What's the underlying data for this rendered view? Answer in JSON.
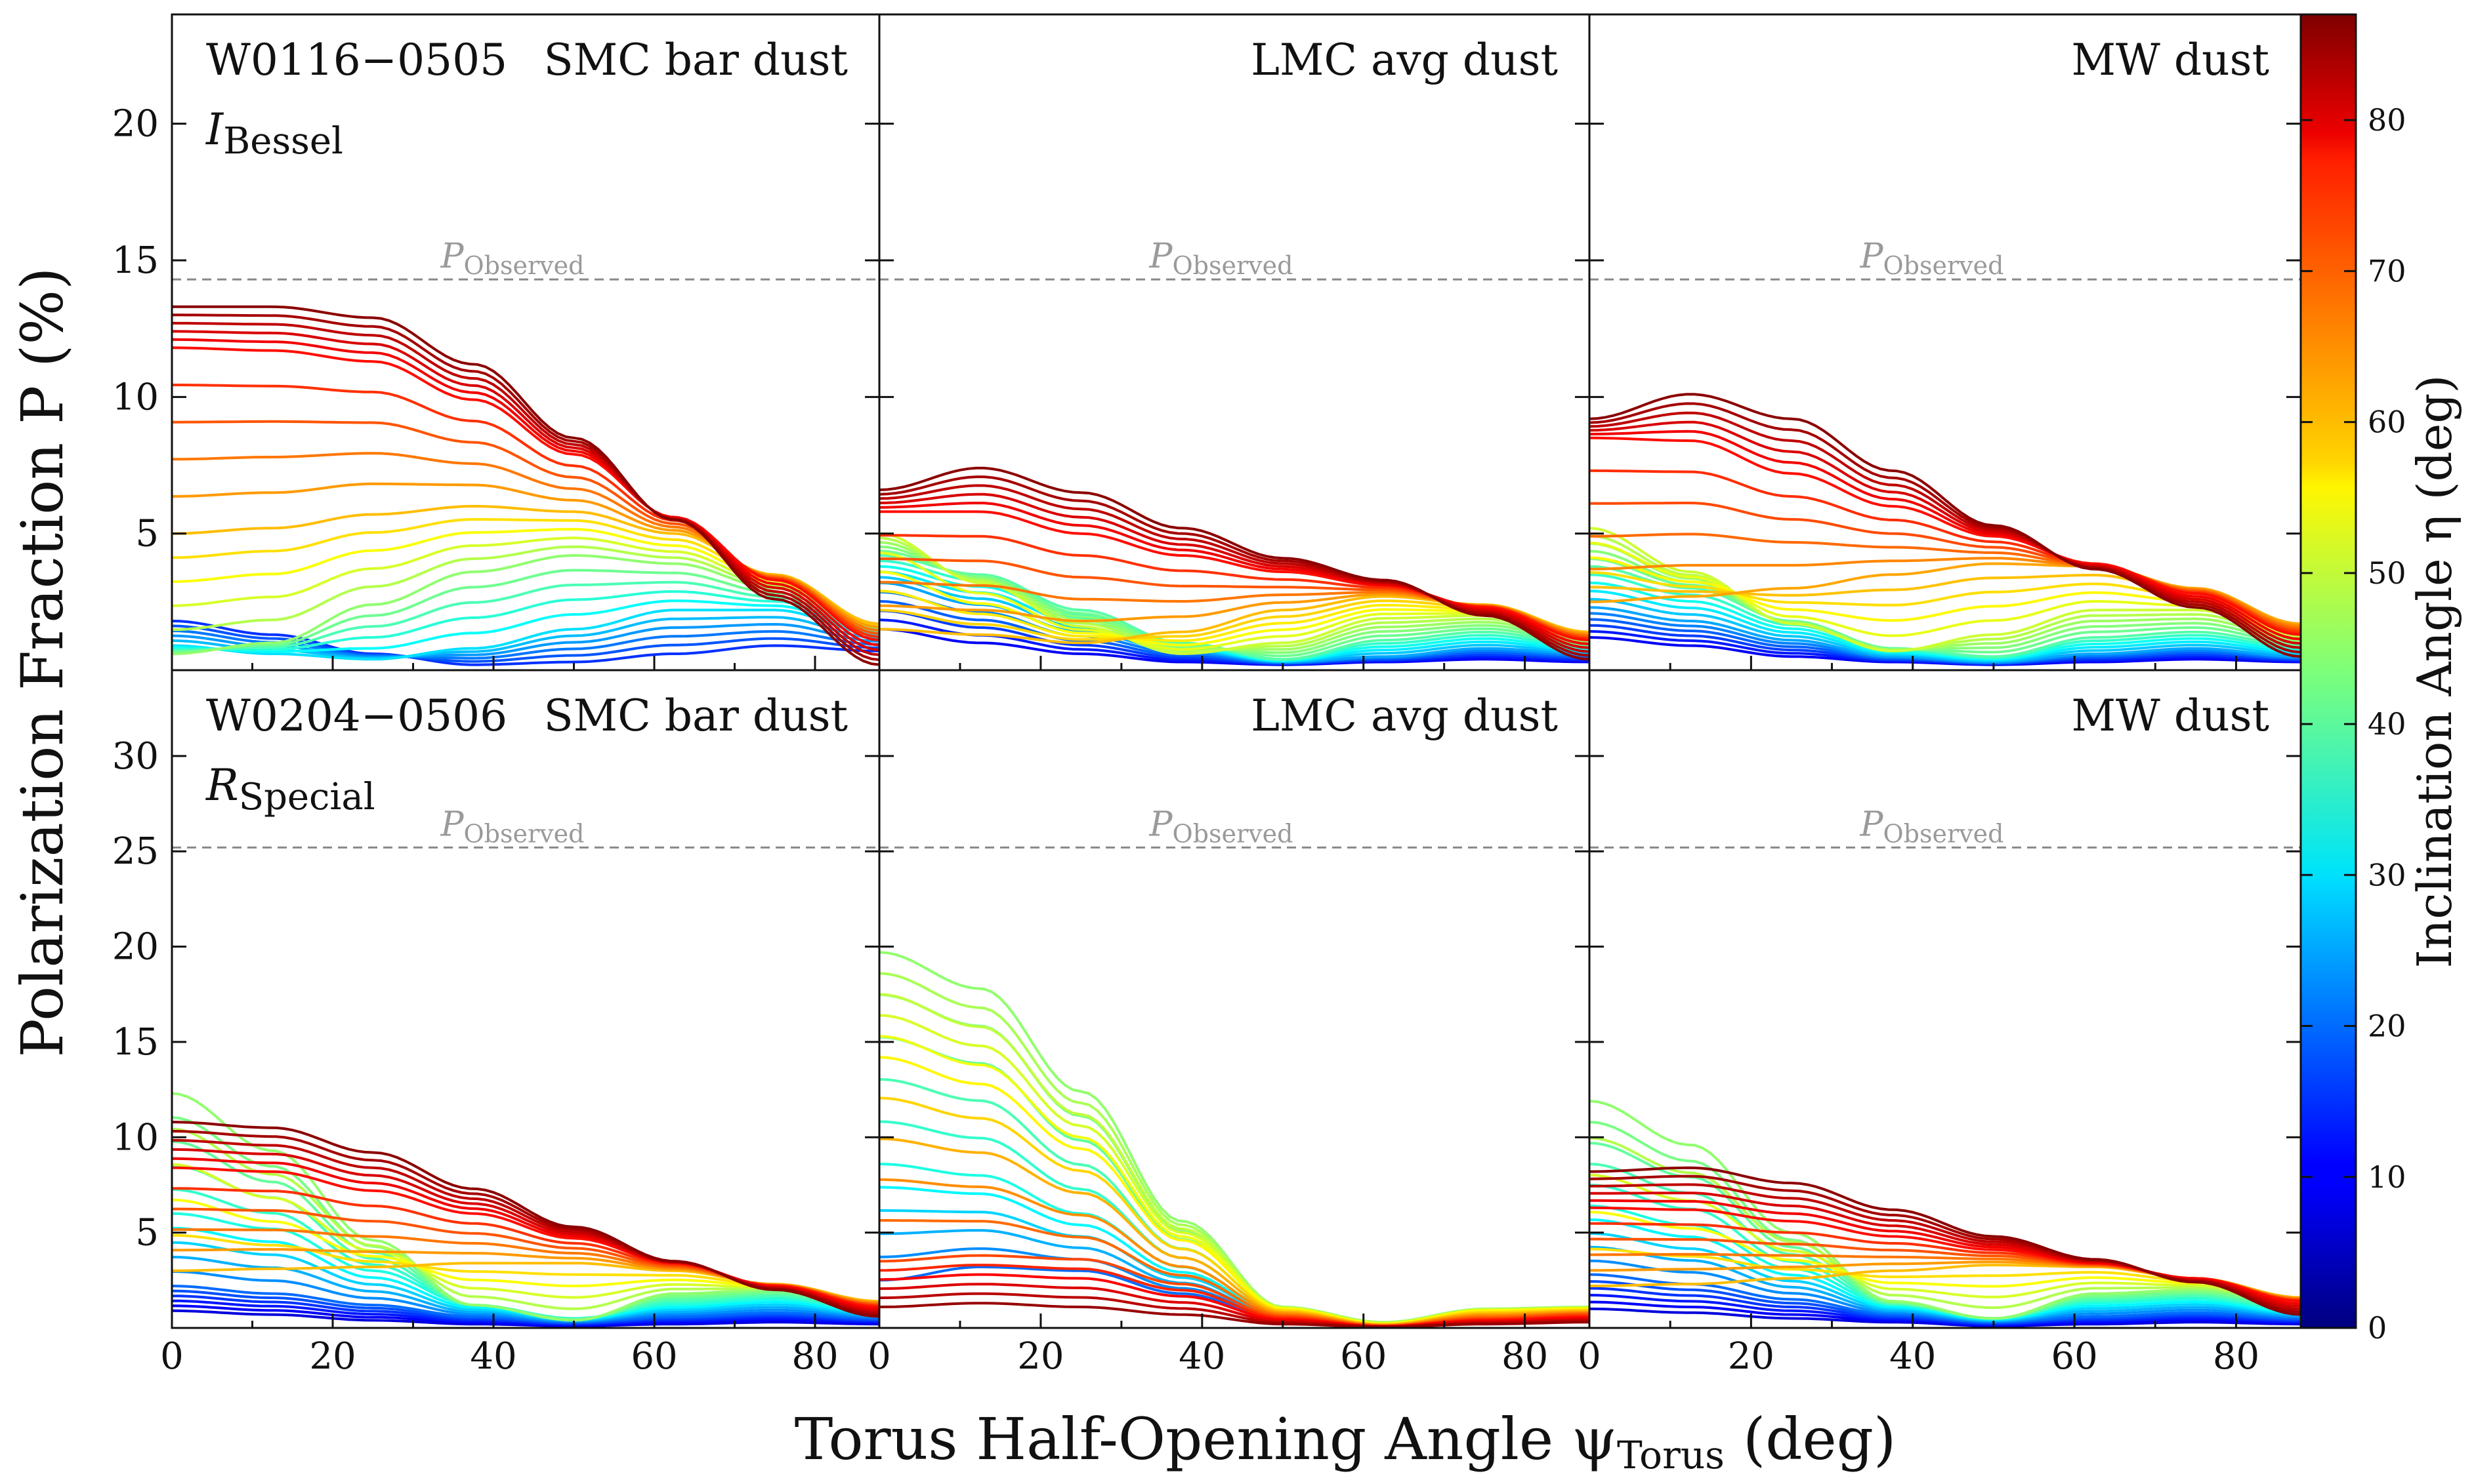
{
  "figure": {
    "xlabel": "Torus Half-Opening Angle ψ",
    "xlabel_sub": "Torus",
    "xlabel_unit": "(deg)",
    "ylabel": "Polarization Fraction P (%)",
    "colorbar_label": "Inclination Angle η (deg)",
    "colorbar_ticks": [
      "0",
      "10",
      "20",
      "30",
      "40",
      "50",
      "60",
      "70",
      "80"
    ],
    "colormap": "jet",
    "pobs_label": "P",
    "pobs_sub": "Observed"
  },
  "chart_data": [
    {
      "type": "line",
      "row": 0,
      "col": 0,
      "object": "W0116−0505",
      "band_main": "I",
      "band_sub": "Bessel",
      "dust": "SMC bar dust",
      "xlim": [
        0,
        88
      ],
      "ylim": [
        0,
        24
      ],
      "xticks": [
        "0",
        "20",
        "40",
        "60",
        "80"
      ],
      "yticks": [
        "5",
        "10",
        "15",
        "20"
      ],
      "ytick_values": [
        5,
        10,
        15,
        20
      ],
      "p_observed": 14.3,
      "shape": "wide",
      "series": [
        {
          "eta": 86,
          "values": [
            13.3,
            13.3,
            12.9,
            11.2,
            8.5,
            5.5,
            2.6,
            0.2
          ]
        },
        {
          "eta": 75,
          "values": [
            11.8,
            11.7,
            11.3,
            9.9,
            7.9,
            5.6,
            3.3,
            1.1
          ]
        },
        {
          "eta": 60,
          "values": [
            5.0,
            5.2,
            5.7,
            6.0,
            5.8,
            5.0,
            3.5,
            1.7
          ]
        },
        {
          "eta": 45,
          "values": [
            0.6,
            1.0,
            2.4,
            3.6,
            4.2,
            3.9,
            3.0,
            1.6
          ]
        },
        {
          "eta": 30,
          "values": [
            0.9,
            0.6,
            0.4,
            0.8,
            1.5,
            2.2,
            2.2,
            1.3
          ]
        },
        {
          "eta": 15,
          "values": [
            1.8,
            1.3,
            0.6,
            0.2,
            0.3,
            0.6,
            0.9,
            0.7
          ]
        }
      ]
    },
    {
      "type": "line",
      "row": 0,
      "col": 1,
      "object": "",
      "band_main": "",
      "band_sub": "",
      "dust": "LMC avg dust",
      "xlim": [
        0,
        88
      ],
      "ylim": [
        0,
        24
      ],
      "xticks": [
        "0",
        "20",
        "40",
        "60",
        "80"
      ],
      "yticks": [
        "5",
        "10",
        "15",
        "20"
      ],
      "ytick_values": [
        5,
        10,
        15,
        20
      ],
      "p_observed": 14.3,
      "shape": "mixed",
      "series": [
        {
          "eta": 86,
          "values": [
            6.6,
            7.4,
            6.5,
            5.2,
            4.1,
            3.3,
            2.0,
            0.4
          ]
        },
        {
          "eta": 75,
          "values": [
            5.8,
            5.8,
            5.0,
            4.2,
            3.6,
            3.1,
            2.3,
            1.1
          ]
        },
        {
          "eta": 60,
          "values": [
            1.5,
            1.3,
            1.0,
            1.4,
            2.2,
            2.7,
            2.4,
            1.4
          ]
        },
        {
          "eta": 50,
          "values": [
            5.0,
            3.2,
            1.6,
            0.6,
            1.0,
            1.9,
            2.0,
            1.2
          ]
        },
        {
          "eta": 40,
          "values": [
            4.2,
            3.5,
            2.2,
            1.0,
            0.4,
            1.1,
            1.4,
            0.9
          ]
        },
        {
          "eta": 25,
          "values": [
            3.2,
            2.4,
            1.4,
            0.7,
            0.3,
            0.5,
            0.8,
            0.6
          ]
        },
        {
          "eta": 10,
          "values": [
            1.5,
            1.0,
            0.6,
            0.3,
            0.2,
            0.3,
            0.4,
            0.3
          ]
        }
      ]
    },
    {
      "type": "line",
      "row": 0,
      "col": 2,
      "object": "",
      "band_main": "",
      "band_sub": "",
      "dust": "MW dust",
      "xlim": [
        0,
        88
      ],
      "ylim": [
        0,
        24
      ],
      "xticks": [
        "0",
        "20",
        "40",
        "60",
        "80"
      ],
      "yticks": [
        "5",
        "10",
        "15",
        "20"
      ],
      "ytick_values": [
        5,
        10,
        15,
        20
      ],
      "p_observed": 14.3,
      "shape": "mixed",
      "series": [
        {
          "eta": 86,
          "values": [
            9.2,
            10.1,
            9.2,
            7.3,
            5.3,
            3.7,
            2.3,
            0.5
          ]
        },
        {
          "eta": 75,
          "values": [
            8.5,
            8.4,
            7.2,
            6.0,
            4.9,
            3.9,
            2.8,
            1.3
          ]
        },
        {
          "eta": 62,
          "values": [
            2.5,
            2.7,
            3.0,
            3.5,
            3.9,
            3.8,
            3.0,
            1.7
          ]
        },
        {
          "eta": 50,
          "values": [
            5.2,
            3.6,
            1.7,
            0.7,
            1.3,
            2.2,
            2.2,
            1.3
          ]
        },
        {
          "eta": 40,
          "values": [
            3.8,
            3.0,
            1.8,
            0.8,
            0.5,
            1.2,
            1.4,
            0.9
          ]
        },
        {
          "eta": 25,
          "values": [
            2.3,
            1.8,
            1.1,
            0.5,
            0.3,
            0.6,
            0.8,
            0.5
          ]
        },
        {
          "eta": 10,
          "values": [
            1.2,
            0.9,
            0.5,
            0.3,
            0.2,
            0.3,
            0.4,
            0.3
          ]
        }
      ]
    },
    {
      "type": "line",
      "row": 1,
      "col": 0,
      "object": "W0204−0506",
      "band_main": "R",
      "band_sub": "Special",
      "dust": "SMC bar dust",
      "xlim": [
        0,
        88
      ],
      "ylim": [
        0,
        34.5
      ],
      "xticks": [
        "0",
        "20",
        "40",
        "60",
        "80"
      ],
      "yticks": [
        "5",
        "10",
        "15",
        "20",
        "25",
        "30"
      ],
      "ytick_values": [
        5,
        10,
        15,
        20,
        25,
        30
      ],
      "p_observed": 25.2,
      "shape": "mixed",
      "series": [
        {
          "eta": 86,
          "values": [
            10.8,
            10.5,
            9.2,
            7.3,
            5.3,
            3.5,
            2.0,
            0.6
          ]
        },
        {
          "eta": 75,
          "values": [
            8.4,
            8.2,
            7.2,
            6.0,
            4.7,
            3.4,
            2.2,
            1.1
          ]
        },
        {
          "eta": 60,
          "values": [
            3.0,
            3.1,
            3.2,
            3.4,
            3.4,
            3.0,
            2.3,
            1.4
          ]
        },
        {
          "eta": 45,
          "values": [
            12.3,
            9.3,
            4.6,
            1.2,
            0.4,
            1.8,
            2.0,
            1.2
          ]
        },
        {
          "eta": 35,
          "values": [
            6.0,
            5.2,
            3.0,
            1.2,
            0.5,
            1.2,
            1.5,
            0.9
          ]
        },
        {
          "eta": 20,
          "values": [
            2.2,
            1.8,
            1.2,
            0.6,
            0.3,
            0.6,
            0.8,
            0.5
          ]
        },
        {
          "eta": 8,
          "values": [
            0.9,
            0.7,
            0.4,
            0.2,
            0.1,
            0.2,
            0.3,
            0.2
          ]
        }
      ]
    },
    {
      "type": "line",
      "row": 1,
      "col": 1,
      "object": "",
      "band_main": "",
      "band_sub": "",
      "dust": "LMC avg dust",
      "xlim": [
        0,
        88
      ],
      "ylim": [
        0,
        34.5
      ],
      "xticks": [
        "0",
        "20",
        "40",
        "60",
        "80"
      ],
      "yticks": [
        "5",
        "10",
        "15",
        "20",
        "25",
        "30"
      ],
      "ytick_values": [
        5,
        10,
        15,
        20,
        25,
        30
      ],
      "p_observed": 25.2,
      "shape": "narrow",
      "series": [
        {
          "eta": 45,
          "values": [
            19.7,
            17.8,
            12.4,
            5.6,
            1.1,
            0.3,
            1.0,
            1.1
          ]
        },
        {
          "eta": 55,
          "values": [
            14.2,
            12.8,
            9.4,
            4.6,
            1.0,
            0.2,
            0.9,
            1.0
          ]
        },
        {
          "eta": 35,
          "values": [
            8.6,
            8.0,
            6.0,
            3.2,
            0.8,
            0.2,
            0.8,
            0.9
          ]
        },
        {
          "eta": 70,
          "values": [
            3.5,
            3.8,
            3.6,
            2.3,
            0.6,
            0.1,
            0.5,
            0.7
          ]
        },
        {
          "eta": 20,
          "values": [
            2.5,
            3.2,
            3.0,
            1.8,
            0.5,
            0.1,
            0.4,
            0.6
          ]
        },
        {
          "eta": 85,
          "values": [
            1.1,
            1.3,
            1.1,
            0.7,
            0.2,
            0.05,
            0.2,
            0.3
          ]
        }
      ]
    },
    {
      "type": "line",
      "row": 1,
      "col": 2,
      "object": "",
      "band_main": "",
      "band_sub": "",
      "dust": "MW dust",
      "xlim": [
        0,
        88
      ],
      "ylim": [
        0,
        34.5
      ],
      "xticks": [
        "0",
        "20",
        "40",
        "60",
        "80"
      ],
      "yticks": [
        "5",
        "10",
        "15",
        "20",
        "25",
        "30"
      ],
      "ytick_values": [
        5,
        10,
        15,
        20,
        25,
        30
      ],
      "p_observed": 25.2,
      "shape": "mixed",
      "series": [
        {
          "eta": 86,
          "values": [
            8.2,
            8.4,
            7.6,
            6.2,
            4.8,
            3.6,
            2.4,
            0.7
          ]
        },
        {
          "eta": 75,
          "values": [
            6.3,
            6.2,
            5.6,
            4.8,
            4.1,
            3.4,
            2.6,
            1.4
          ]
        },
        {
          "eta": 60,
          "values": [
            2.2,
            2.3,
            2.6,
            3.0,
            3.3,
            3.2,
            2.6,
            1.6
          ]
        },
        {
          "eta": 45,
          "values": [
            11.9,
            9.6,
            5.0,
            1.4,
            0.5,
            1.8,
            2.0,
            1.3
          ]
        },
        {
          "eta": 35,
          "values": [
            6.4,
            5.4,
            3.1,
            1.2,
            0.5,
            1.3,
            1.5,
            0.9
          ]
        },
        {
          "eta": 20,
          "values": [
            2.8,
            2.3,
            1.5,
            0.7,
            0.3,
            0.6,
            0.8,
            0.5
          ]
        },
        {
          "eta": 8,
          "values": [
            1.0,
            0.8,
            0.5,
            0.3,
            0.1,
            0.2,
            0.3,
            0.2
          ]
        }
      ]
    }
  ]
}
